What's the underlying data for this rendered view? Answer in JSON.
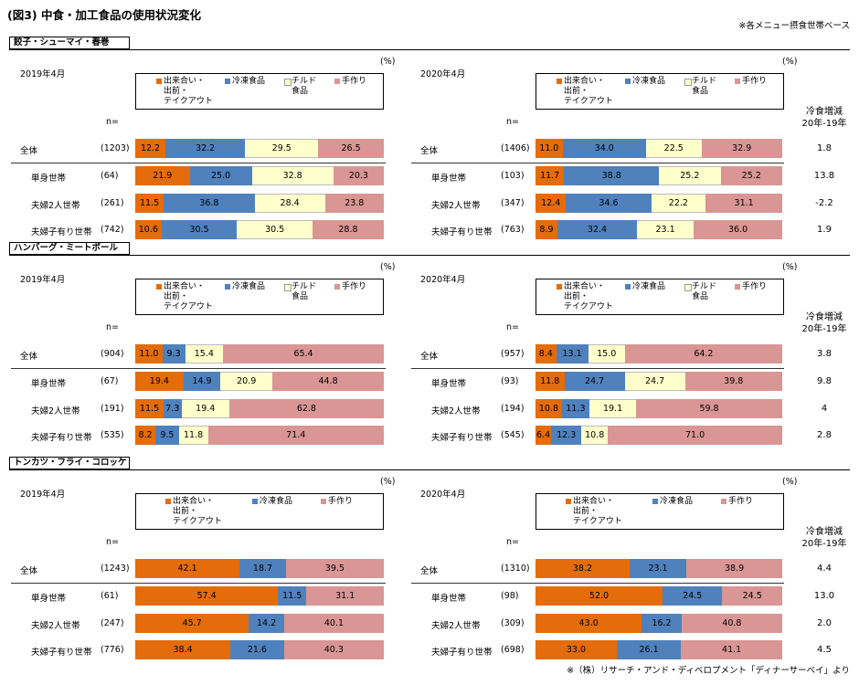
{
  "header": {
    "title": "(図3) 中食・加工食品の使用状況変化",
    "note": "※各メニュー摂食世帯ベース",
    "footer": "※（株）リサーチ・アンド・ディベロプメント「ディナーサーベイ」より"
  },
  "colors": {
    "deli": "#e46c0a",
    "frozen": "#4f81bd",
    "chilled": "#ffffcc",
    "homemade": "#d99694"
  },
  "labels": {
    "n": "n=",
    "pct": "(%)",
    "diff_head_1": "冷食増減",
    "diff_head_2": "20年-19年"
  },
  "chart_data": [
    {
      "section": "餃子・シューマイ・春巻",
      "type": "bar",
      "stacked": true,
      "legend": [
        "出来合い・\n出前・\nテイクアウト",
        "冷凍食品",
        "チルド\n食品",
        "手作り"
      ],
      "panels": [
        {
          "period": "2019年4月",
          "rows": [
            {
              "label": "全体",
              "n": "(1203)",
              "values": [
                12.2,
                32.2,
                29.5,
                26.5
              ]
            },
            {
              "label": "単身世帯",
              "n": "(64)",
              "values": [
                21.9,
                25.0,
                32.8,
                20.3
              ]
            },
            {
              "label": "夫婦2人世帯",
              "n": "(261)",
              "values": [
                11.5,
                36.8,
                28.4,
                23.8
              ]
            },
            {
              "label": "夫婦子有り世帯",
              "n": "(742)",
              "values": [
                10.6,
                30.5,
                30.5,
                28.8
              ]
            }
          ]
        },
        {
          "period": "2020年4月",
          "rows": [
            {
              "label": "全体",
              "n": "(1406)",
              "values": [
                11.0,
                34.0,
                22.5,
                32.9
              ]
            },
            {
              "label": "単身世帯",
              "n": "(103)",
              "values": [
                11.7,
                38.8,
                25.2,
                25.2
              ]
            },
            {
              "label": "夫婦2人世帯",
              "n": "(347)",
              "values": [
                12.4,
                34.6,
                22.2,
                31.1
              ]
            },
            {
              "label": "夫婦子有り世帯",
              "n": "(763)",
              "values": [
                8.9,
                32.4,
                23.1,
                36.0
              ]
            }
          ]
        }
      ],
      "diff": [
        "1.8",
        "13.8",
        "-2.2",
        "1.9"
      ]
    },
    {
      "section": "ハンバーグ・ミートボール",
      "type": "bar",
      "stacked": true,
      "legend": [
        "出来合い・\n出前・\nテイクアウト",
        "冷凍食品",
        "チルド\n食品",
        "手作り"
      ],
      "panels": [
        {
          "period": "2019年4月",
          "rows": [
            {
              "label": "全体",
              "n": "(904)",
              "values": [
                11.0,
                9.3,
                15.4,
                65.4
              ]
            },
            {
              "label": "単身世帯",
              "n": "(67)",
              "values": [
                19.4,
                14.9,
                20.9,
                44.8
              ]
            },
            {
              "label": "夫婦2人世帯",
              "n": "(191)",
              "values": [
                11.5,
                7.3,
                19.4,
                62.8
              ]
            },
            {
              "label": "夫婦子有り世帯",
              "n": "(535)",
              "values": [
                8.2,
                9.5,
                11.8,
                71.4
              ]
            }
          ]
        },
        {
          "period": "2020年4月",
          "rows": [
            {
              "label": "全体",
              "n": "(957)",
              "values": [
                8.4,
                13.1,
                15.0,
                64.2
              ]
            },
            {
              "label": "単身世帯",
              "n": "(93)",
              "values": [
                11.8,
                24.7,
                24.7,
                39.8
              ]
            },
            {
              "label": "夫婦2人世帯",
              "n": "(194)",
              "values": [
                10.8,
                11.3,
                19.1,
                59.8
              ]
            },
            {
              "label": "夫婦子有り世帯",
              "n": "(545)",
              "values": [
                6.4,
                12.3,
                10.8,
                71.0
              ]
            }
          ]
        }
      ],
      "diff": [
        "3.8",
        "9.8",
        "4",
        "2.8"
      ]
    },
    {
      "section": "トンカツ・フライ・コロッケ",
      "type": "bar",
      "stacked": true,
      "legend": [
        "出来合い・\n出前・\nテイクアウト",
        "冷凍食品",
        "手作り"
      ],
      "panels": [
        {
          "period": "2019年4月",
          "rows": [
            {
              "label": "全体",
              "n": "(1243)",
              "values": [
                42.1,
                18.7,
                39.5
              ]
            },
            {
              "label": "単身世帯",
              "n": "(61)",
              "values": [
                57.4,
                11.5,
                31.1
              ]
            },
            {
              "label": "夫婦2人世帯",
              "n": "(247)",
              "values": [
                45.7,
                14.2,
                40.1
              ]
            },
            {
              "label": "夫婦子有り世帯",
              "n": "(776)",
              "values": [
                38.4,
                21.6,
                40.3
              ]
            }
          ]
        },
        {
          "period": "2020年4月",
          "rows": [
            {
              "label": "全体",
              "n": "(1310)",
              "values": [
                38.2,
                23.1,
                38.9
              ]
            },
            {
              "label": "単身世帯",
              "n": "(98)",
              "values": [
                52.0,
                24.5,
                24.5
              ]
            },
            {
              "label": "夫婦2人世帯",
              "n": "(309)",
              "values": [
                43.0,
                16.2,
                40.8
              ]
            },
            {
              "label": "夫婦子有り世帯",
              "n": "(698)",
              "values": [
                33.0,
                26.1,
                41.1
              ]
            }
          ]
        }
      ],
      "diff": [
        "4.4",
        "13.0",
        "2.0",
        "4.5"
      ]
    }
  ]
}
